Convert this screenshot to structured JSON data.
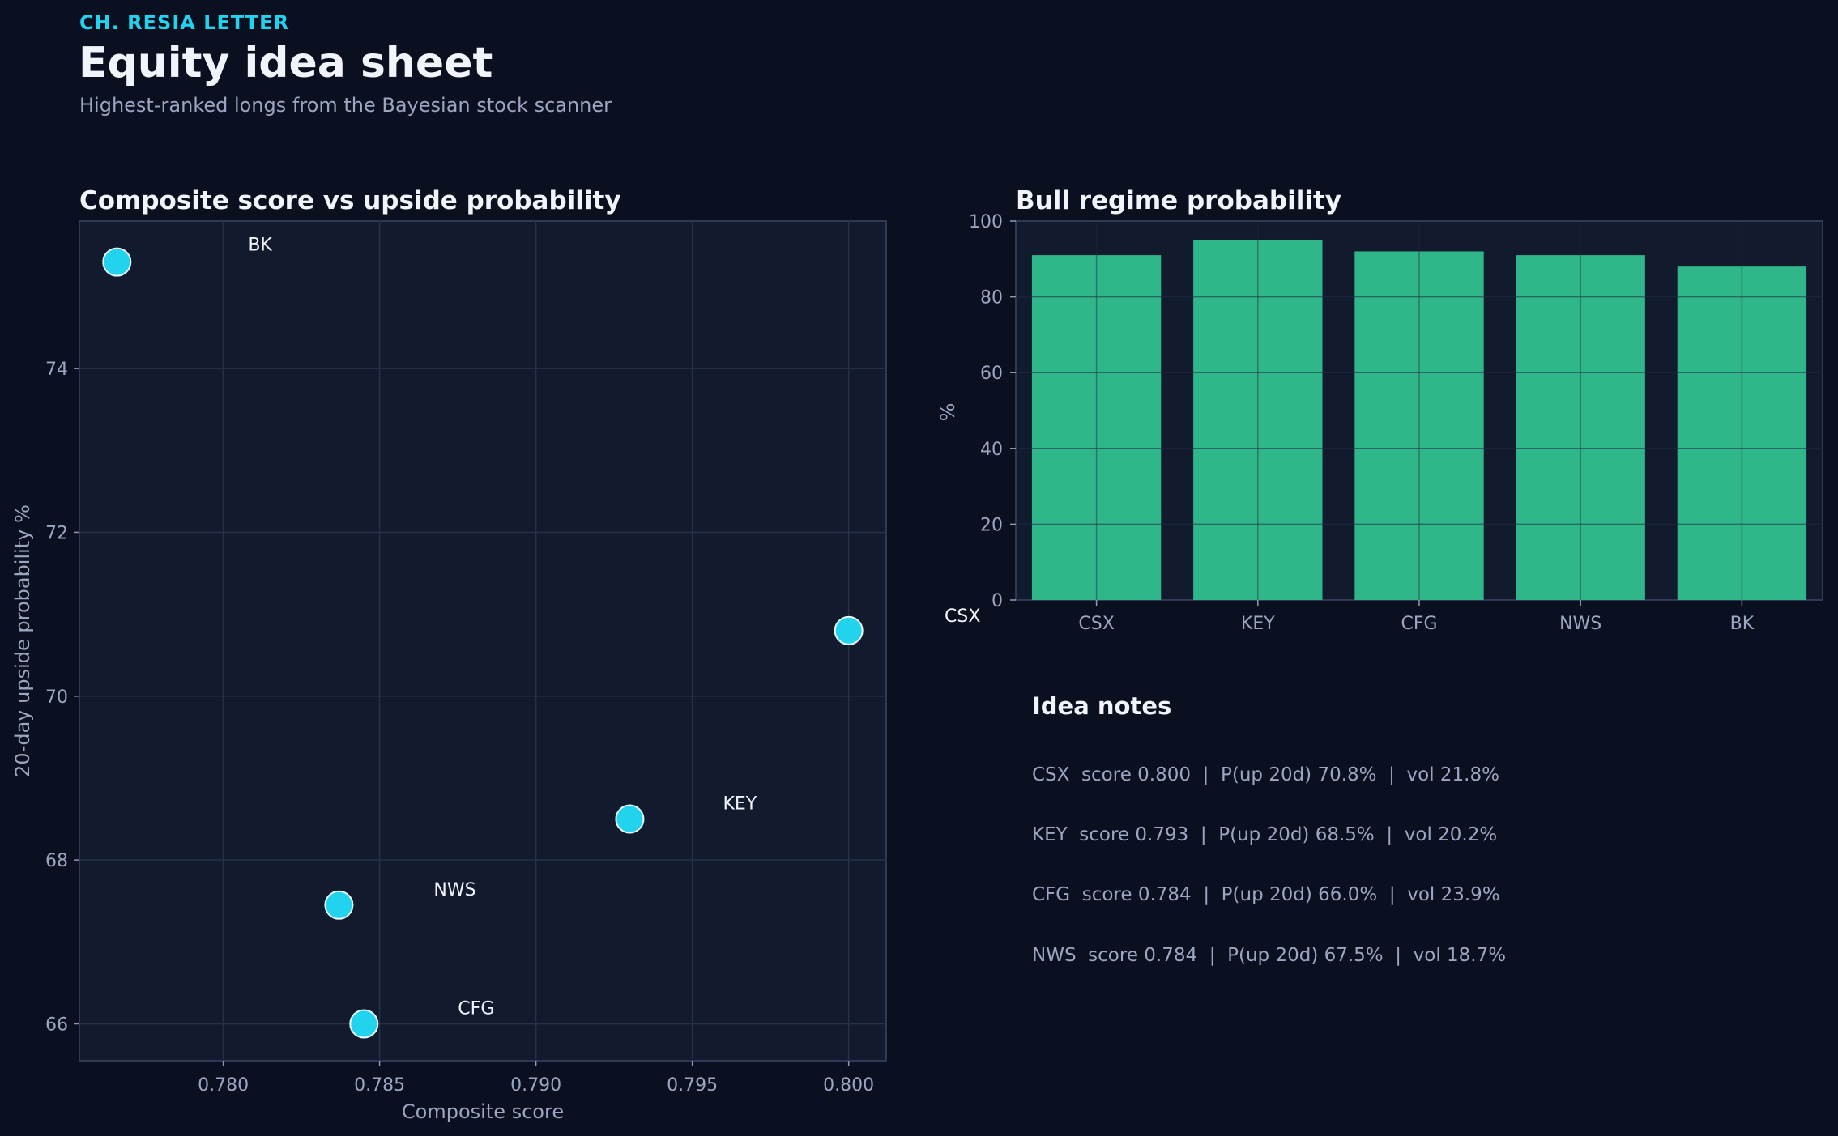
{
  "header": {
    "kicker": "CH. RESIA LETTER",
    "title": "Equity idea sheet",
    "subtitle": "Highest-ranked longs from the Bayesian stock scanner"
  },
  "chart_data": [
    {
      "type": "scatter",
      "title": "Composite score vs upside probability",
      "xlabel": "Composite score",
      "ylabel": "20-day upside probability %",
      "xlim": [
        0.7754,
        0.8012
      ],
      "ylim": [
        65.55,
        75.8
      ],
      "xticks": [
        0.78,
        0.785,
        0.79,
        0.795,
        0.8
      ],
      "xtick_labels": [
        "0.780",
        "0.785",
        "0.790",
        "0.795",
        "0.800"
      ],
      "yticks": [
        66,
        68,
        70,
        72,
        74
      ],
      "ytick_labels": [
        "66",
        "68",
        "70",
        "72",
        "74"
      ],
      "grid": true,
      "point_color": "#22d3ee",
      "points": [
        {
          "label": "CSX",
          "x": 0.8,
          "y": 70.8
        },
        {
          "label": "KEY",
          "x": 0.793,
          "y": 68.5
        },
        {
          "label": "CFG",
          "x": 0.7845,
          "y": 66.0
        },
        {
          "label": "NWS",
          "x": 0.7837,
          "y": 67.45
        },
        {
          "label": "BK",
          "x": 0.7766,
          "y": 75.3
        }
      ]
    },
    {
      "type": "bar",
      "title": "Bull regime probability",
      "xlabel": "",
      "ylabel": "%",
      "ylim": [
        0,
        100
      ],
      "yticks": [
        0,
        20,
        40,
        60,
        80,
        100
      ],
      "ytick_labels": [
        "0",
        "20",
        "40",
        "60",
        "80",
        "100"
      ],
      "grid": true,
      "bar_color": "#2fb78a",
      "categories": [
        "CSX",
        "KEY",
        "CFG",
        "NWS",
        "BK"
      ],
      "values": [
        91,
        95,
        92,
        91,
        88
      ]
    }
  ],
  "notes": {
    "title": "Idea notes",
    "lines": [
      "CSX  score 0.800  |  P(up 20d) 70.8%  |  vol 21.8%",
      "KEY  score 0.793  |  P(up 20d) 68.5%  |  vol 20.2%",
      "CFG  score 0.784  |  P(up 20d) 66.0%  |  vol 23.9%",
      "NWS  score 0.784  |  P(up 20d) 67.5%  |  vol 18.7%"
    ]
  }
}
